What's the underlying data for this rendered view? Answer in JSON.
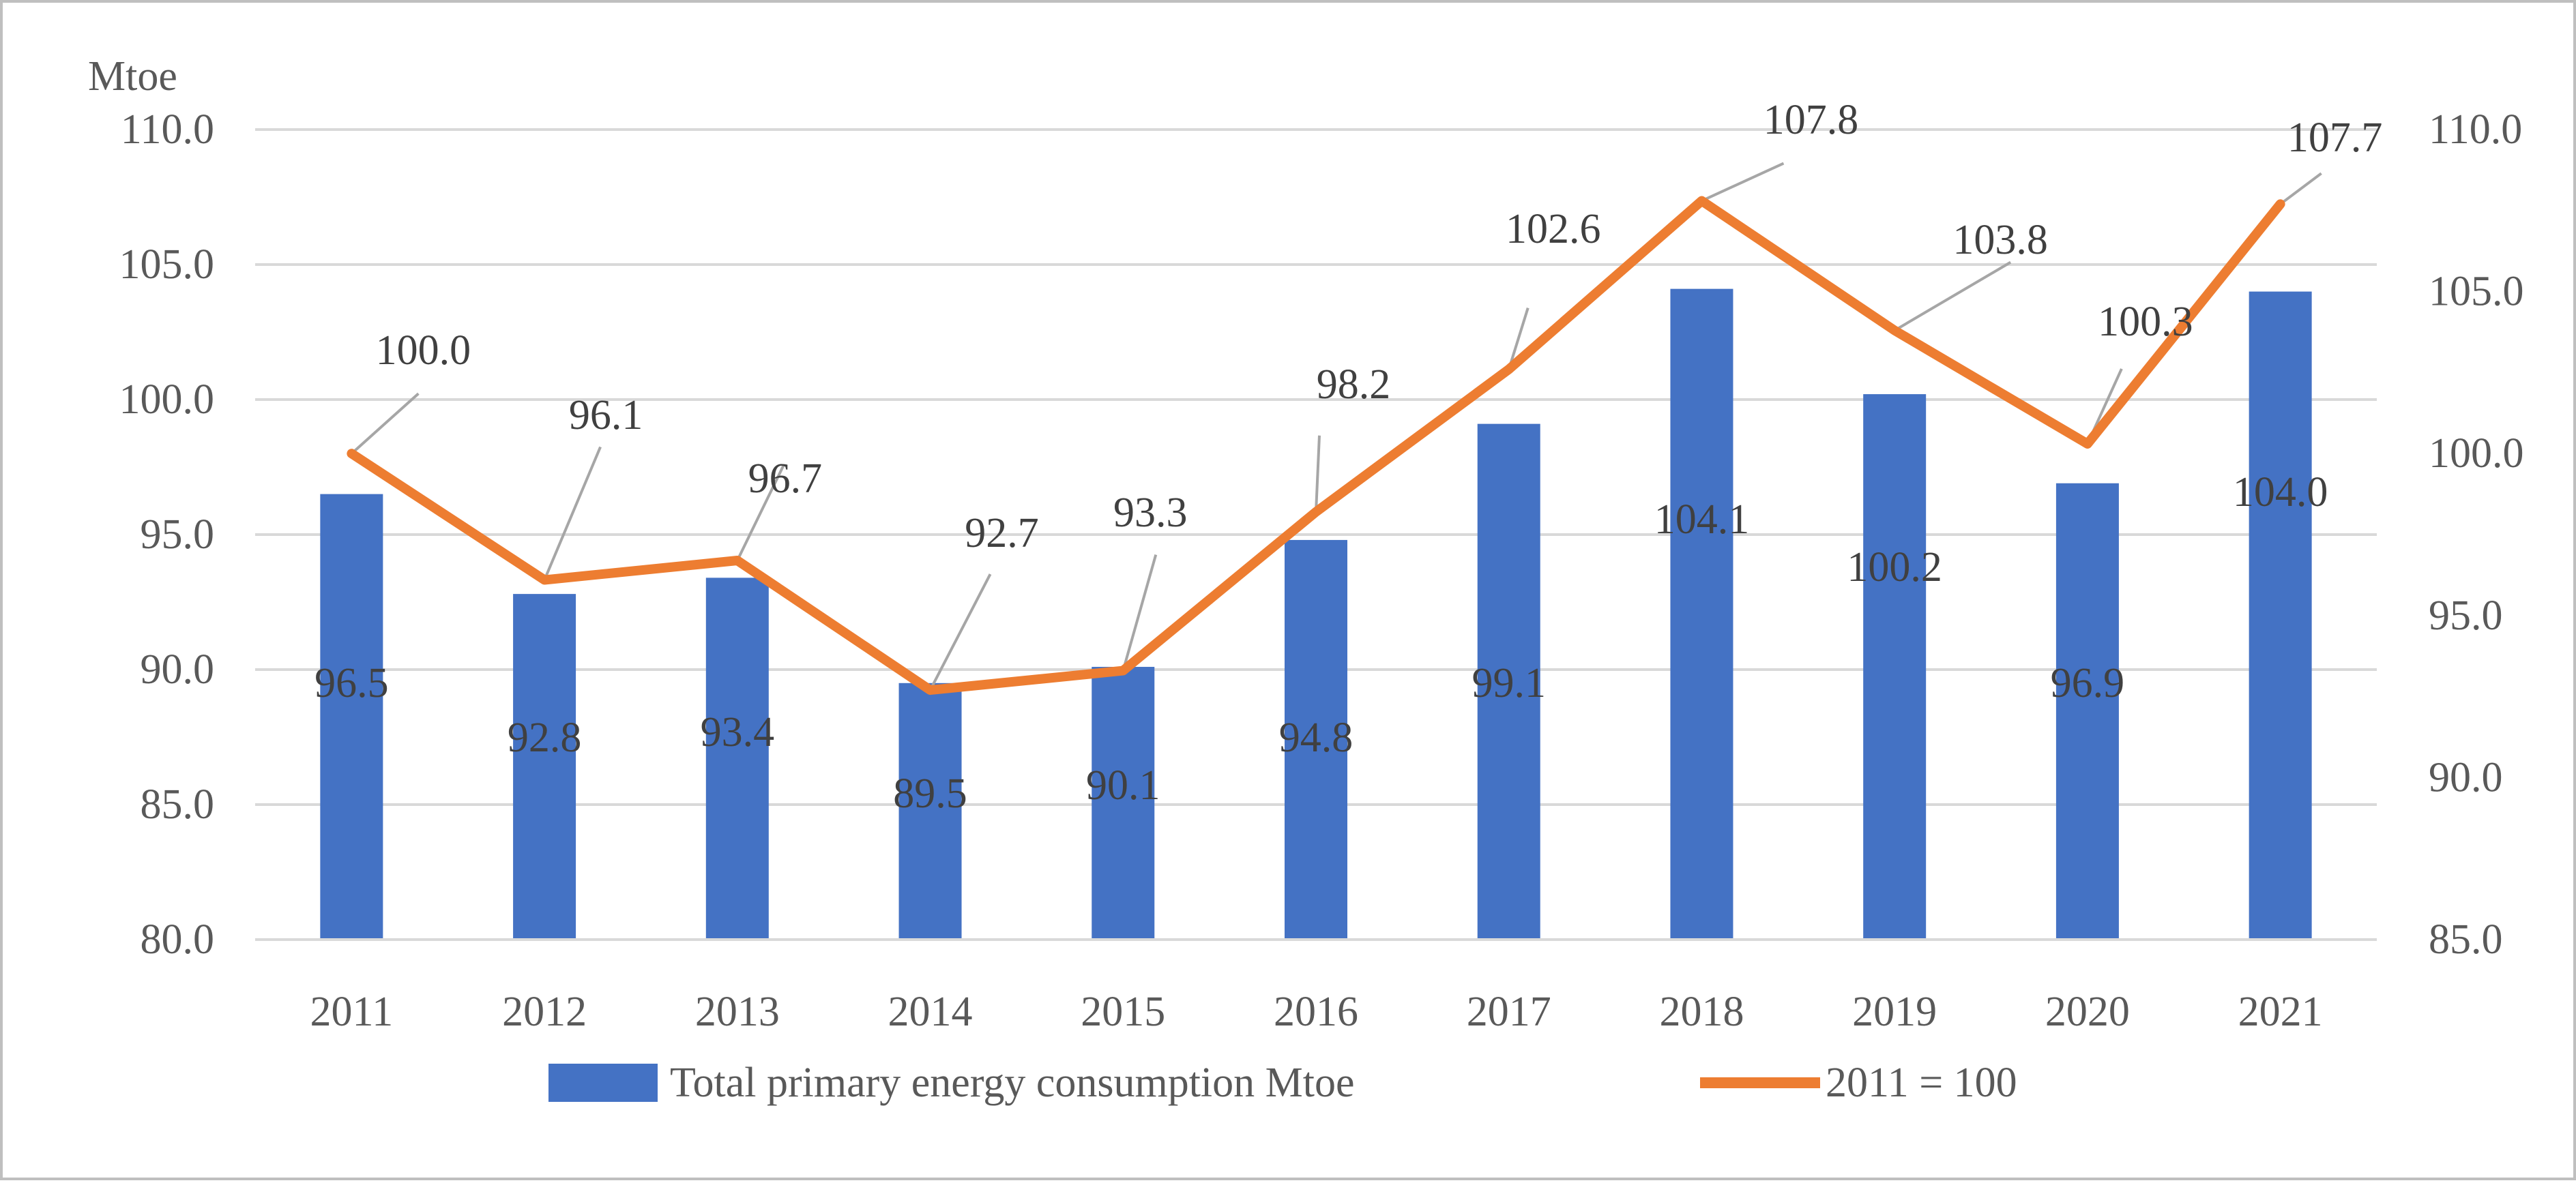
{
  "chart_data": {
    "type": "bar",
    "categories": [
      "2011",
      "2012",
      "2013",
      "2014",
      "2015",
      "2016",
      "2017",
      "2018",
      "2019",
      "2020",
      "2021"
    ],
    "series": [
      {
        "name": "Total primary energy consumption Mtoe",
        "type": "bar",
        "axis": "left",
        "color": "#4472C4",
        "values": [
          96.5,
          92.8,
          93.4,
          89.5,
          90.1,
          94.8,
          99.1,
          104.1,
          100.2,
          96.9,
          104.0
        ],
        "value_labels": [
          "96.5",
          "92.8",
          "93.4",
          "89.5",
          "90.1",
          "94.8",
          "99.1",
          "104.1",
          "100.2",
          "96.9",
          "104.0"
        ]
      },
      {
        "name": "2011 = 100",
        "type": "line",
        "axis": "right",
        "color": "#ED7D31",
        "values": [
          100.0,
          96.1,
          96.7,
          92.7,
          93.3,
          98.2,
          102.6,
          107.8,
          103.8,
          100.3,
          107.7
        ],
        "value_labels": [
          "100.0",
          "96.1",
          "96.7",
          "92.7",
          "93.3",
          "98.2",
          "102.6",
          "107.8",
          "103.8",
          "100.3",
          "107.7"
        ]
      }
    ],
    "left_axis": {
      "unit_label": "Mtoe",
      "ylim": [
        80,
        110
      ],
      "ticks": [
        80,
        85,
        90,
        95,
        100,
        105,
        110
      ],
      "tick_labels": [
        "80.0",
        "85.0",
        "90.0",
        "95.0",
        "100.0",
        "105.0",
        "110.0"
      ]
    },
    "right_axis": {
      "ylim": [
        85,
        110
      ],
      "ticks": [
        85,
        90,
        95,
        100,
        105,
        110
      ],
      "tick_labels": [
        "85.0",
        "90.0",
        "95.0",
        "100.0",
        "105.0",
        "110.0"
      ]
    },
    "grid": true,
    "legend_position": "bottom",
    "title": "",
    "xlabel": ""
  }
}
